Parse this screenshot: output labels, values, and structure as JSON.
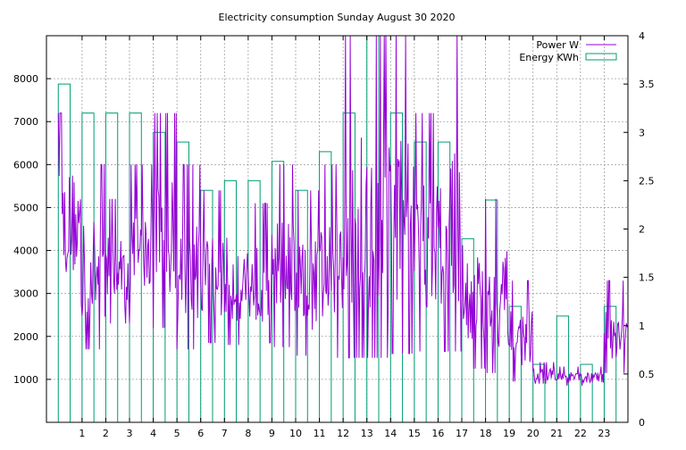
{
  "colors": {
    "power": "#9400d3",
    "energy": "#009e73",
    "grid": "#a0a0a0",
    "axis": "#000000",
    "background": "#ffffff"
  },
  "chart_data": {
    "type": "line",
    "title": "Electricity consumption Sunday August 30 2020",
    "grid": true,
    "legend_position": "top-right",
    "x_range": [
      -0.5,
      24.0
    ],
    "x_ticks": [
      "1",
      "2",
      "3",
      "4",
      "5",
      "6",
      "7",
      "8",
      "9",
      "10",
      "11",
      "12",
      "13",
      "14",
      "15",
      "16",
      "17",
      "18",
      "19",
      "20",
      "21",
      "22",
      "23"
    ],
    "y_left": {
      "range": [
        0,
        9000
      ],
      "ticks": [
        "1000",
        "2000",
        "3000",
        "4000",
        "5000",
        "6000",
        "7000",
        "8000"
      ]
    },
    "y_right": {
      "range": [
        0,
        4
      ],
      "ticks": [
        "0",
        "0.5",
        "1",
        "1.5",
        "2",
        "2.5",
        "3",
        "3.5",
        "4"
      ]
    },
    "series": [
      {
        "name": "Power W",
        "type": "line",
        "axis": "left",
        "hourly_ranges": [
          {
            "hour": 0,
            "min": 2750,
            "max": 7200
          },
          {
            "hour": 1,
            "min": 1700,
            "max": 6000
          },
          {
            "hour": 2,
            "min": 2300,
            "max": 5200
          },
          {
            "hour": 3,
            "min": 2300,
            "max": 6000
          },
          {
            "hour": 4,
            "min": 2200,
            "max": 7200
          },
          {
            "hour": 5,
            "min": 1700,
            "max": 6000
          },
          {
            "hour": 6,
            "min": 1850,
            "max": 5400
          },
          {
            "hour": 7,
            "min": 1800,
            "max": 5400
          },
          {
            "hour": 8,
            "min": 1850,
            "max": 5100
          },
          {
            "hour": 9,
            "min": 1750,
            "max": 6000
          },
          {
            "hour": 10,
            "min": 1550,
            "max": 5400
          },
          {
            "hour": 11,
            "min": 1500,
            "max": 6000
          },
          {
            "hour": 12,
            "min": 1500,
            "max": 9000
          },
          {
            "hour": 13,
            "min": 1500,
            "max": 9000
          },
          {
            "hour": 14,
            "min": 1600,
            "max": 9000
          },
          {
            "hour": 15,
            "min": 1650,
            "max": 7200
          },
          {
            "hour": 16,
            "min": 1650,
            "max": 9000
          },
          {
            "hour": 17,
            "min": 1250,
            "max": 5400
          },
          {
            "hour": 18,
            "min": 1150,
            "max": 5200
          },
          {
            "hour": 19,
            "min": 950,
            "max": 3300
          },
          {
            "hour": 20,
            "min": 900,
            "max": 1400
          },
          {
            "hour": 21,
            "min": 850,
            "max": 1300
          },
          {
            "hour": 22,
            "min": 850,
            "max": 1300
          },
          {
            "hour": 23,
            "min": 1150,
            "max": 3300
          }
        ]
      },
      {
        "name": "Energy KWh",
        "type": "bar",
        "axis": "right",
        "hours": [
          0,
          1,
          2,
          3,
          4,
          5,
          6,
          7,
          8,
          9,
          10,
          11,
          12,
          13,
          14,
          15,
          16,
          17,
          18,
          19,
          20,
          21,
          22,
          23
        ],
        "values": [
          3.5,
          3.2,
          3.2,
          3.2,
          3.0,
          2.9,
          2.4,
          2.5,
          2.5,
          2.7,
          2.4,
          2.8,
          3.2,
          4.0,
          3.2,
          2.9,
          2.9,
          1.9,
          2.3,
          1.2,
          0.6,
          1.1,
          0.6,
          1.2
        ]
      }
    ]
  }
}
